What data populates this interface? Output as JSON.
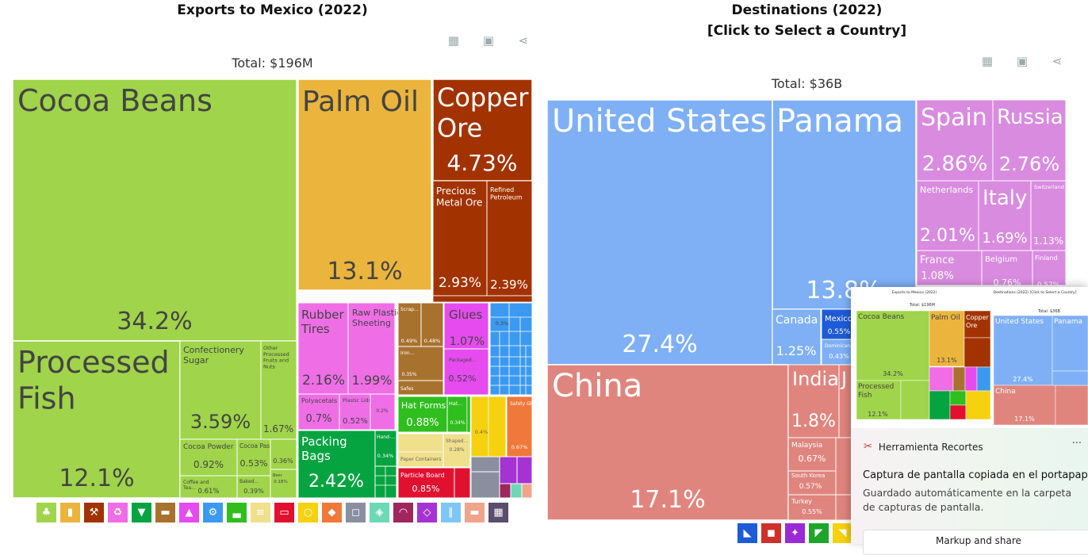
{
  "left": {
    "title": "Exports to Mexico (2022)",
    "total": "Total: $196M",
    "toolbar": [
      "table-icon",
      "image-icon",
      "share-icon"
    ]
  },
  "right": {
    "title_line1": "Destinations (2022)",
    "title_line2": "[Click to Select a Country]",
    "total": "Total: $36B",
    "toolbar": [
      "table-icon",
      "image-icon",
      "share-icon"
    ]
  },
  "chart_data": [
    {
      "type": "treemap",
      "title": "Exports to Mexico (2022)",
      "subtitle": "Total: $196M",
      "items": [
        {
          "name": "Cocoa Beans",
          "value": "34.2%",
          "color": "#a0d44a"
        },
        {
          "name": "Processed Fish",
          "value": "12.1%",
          "color": "#a0d44a"
        },
        {
          "name": "Confectionery Sugar",
          "value": "3.59%",
          "color": "#a0d44a"
        },
        {
          "name": "Other Processed Fruits and Nuts",
          "value": "1.67%",
          "color": "#a0d44a"
        },
        {
          "name": "Cocoa Powder",
          "value": "0.92%",
          "color": "#a0d44a"
        },
        {
          "name": "Cocoa Paste",
          "value": "0.53%",
          "color": "#a0d44a"
        },
        {
          "name": "Coffee and Tea...",
          "value": "0.61%",
          "color": "#a0d44a"
        },
        {
          "name": "Baked...",
          "value": "0.39%",
          "color": "#a0d44a"
        },
        {
          "name": "",
          "value": "0.36%",
          "color": "#a0d44a"
        },
        {
          "name": "Beer",
          "value": "0.18%",
          "color": "#a0d44a"
        },
        {
          "name": "Palm Oil",
          "value": "13.1%",
          "color": "#ebb43c"
        },
        {
          "name": "Copper Ore",
          "value": "4.73%",
          "color": "#a23300"
        },
        {
          "name": "Precious Metal Ore",
          "value": "2.93%",
          "color": "#a23300"
        },
        {
          "name": "Refined Petroleum",
          "value": "2.39%",
          "color": "#a23300"
        },
        {
          "name": "Rubber Tires",
          "value": "2.16%",
          "color": "#ef6ee6"
        },
        {
          "name": "Raw Plastic Sheeting",
          "value": "1.99%",
          "color": "#ef6ee6"
        },
        {
          "name": "Polyacetals",
          "value": "0.7%",
          "color": "#ef6ee6"
        },
        {
          "name": "Plastic Lids",
          "value": "0.52%",
          "color": "#ef6ee6"
        },
        {
          "name": "",
          "value": "0.2%",
          "color": "#ef6ee6"
        },
        {
          "name": "Scrap...",
          "value": "0.49%",
          "color": "#a8722e"
        },
        {
          "name": "",
          "value": "0.48%",
          "color": "#a8722e"
        },
        {
          "name": "Iron...",
          "value": "0.35%",
          "color": "#a8722e"
        },
        {
          "name": "Safes",
          "value": "",
          "color": "#a8722e"
        },
        {
          "name": "Glues",
          "value": "1.07%",
          "color": "#e54bef"
        },
        {
          "name": "Packaged...",
          "value": "0.52%",
          "color": "#e54bef"
        },
        {
          "name": "",
          "value": "0.3%",
          "color": "#3b9aef"
        },
        {
          "name": "Packing Bags",
          "value": "2.42%",
          "color": "#05a441"
        },
        {
          "name": "Hand-...",
          "value": "0.34%",
          "color": "#05a441"
        },
        {
          "name": "Hat Forms",
          "value": "0.88%",
          "color": "#2fbe1e"
        },
        {
          "name": "Hat...",
          "value": "0.34%",
          "color": "#2fbe1e"
        },
        {
          "name": "Paper Containers",
          "value": "",
          "color": "#f0e08c"
        },
        {
          "name": "Shaped...",
          "value": "0.28%",
          "color": "#f0e08c"
        },
        {
          "name": "Particle Board",
          "value": "0.85%",
          "color": "#e2102f"
        },
        {
          "name": "",
          "value": "0.4%",
          "color": "#f5d10f"
        },
        {
          "name": "Safety Glass",
          "value": "0.67%",
          "color": "#f0783a"
        }
      ]
    },
    {
      "type": "treemap",
      "title": "Destinations (2022)",
      "subtitle": "Total: $36B",
      "items": [
        {
          "name": "United States",
          "value": "27.4%",
          "color": "#7fb0f6"
        },
        {
          "name": "Panama",
          "value": "13.8%",
          "color": "#7fb0f6"
        },
        {
          "name": "Canada",
          "value": "1.25%",
          "color": "#7fb0f6"
        },
        {
          "name": "Mexico",
          "value": "0.55%",
          "color": "#1e5bd6"
        },
        {
          "name": "Dominican...",
          "value": "0.43%",
          "color": "#7fb0f6"
        },
        {
          "name": "China",
          "value": "17.1%",
          "color": "#e0857e"
        },
        {
          "name": "India",
          "value": "1.8%",
          "color": "#e0857e"
        },
        {
          "name": "J",
          "value": "",
          "color": "#e0857e"
        },
        {
          "name": "Malaysia",
          "value": "0.67%",
          "color": "#e0857e"
        },
        {
          "name": "South Korea",
          "value": "0.57%",
          "color": "#e0857e"
        },
        {
          "name": "Turkey",
          "value": "0.55%",
          "color": "#e0857e"
        },
        {
          "name": "Spain",
          "value": "2.86%",
          "color": "#d98be0"
        },
        {
          "name": "Russia",
          "value": "2.76%",
          "color": "#d98be0"
        },
        {
          "name": "Netherlands",
          "value": "2.01%",
          "color": "#d98be0"
        },
        {
          "name": "Italy",
          "value": "1.69%",
          "color": "#d98be0"
        },
        {
          "name": "Switzerland",
          "value": "1.13%",
          "color": "#d98be0"
        },
        {
          "name": "France",
          "value": "1.08%",
          "color": "#d98be0"
        },
        {
          "name": "Belgium",
          "value": "0.76%",
          "color": "#d98be0"
        },
        {
          "name": "Finland",
          "value": "0.57%",
          "color": "#d98be0"
        }
      ]
    }
  ],
  "legend_left": [
    {
      "icon": "wheat-icon",
      "color": "#a0d44a",
      "glyph": "♣"
    },
    {
      "icon": "bottle-icon",
      "color": "#ebb43c",
      "glyph": "▮"
    },
    {
      "icon": "pickaxe-icon",
      "color": "#a23300",
      "glyph": "⚒"
    },
    {
      "icon": "recycle-icon",
      "color": "#ef6ee6",
      "glyph": "♻"
    },
    {
      "icon": "shirt-icon",
      "color": "#05a441",
      "glyph": "▼"
    },
    {
      "icon": "anvil-icon",
      "color": "#a8722e",
      "glyph": "▬"
    },
    {
      "icon": "flask-icon",
      "color": "#e54bef",
      "glyph": "▲"
    },
    {
      "icon": "gear-icon",
      "color": "#3b9aef",
      "glyph": "⚙"
    },
    {
      "icon": "shoe-icon",
      "color": "#2fbe1e",
      "glyph": "▃"
    },
    {
      "icon": "paper-icon",
      "color": "#f0e08c",
      "glyph": "≡"
    },
    {
      "icon": "card-icon",
      "color": "#e2102f",
      "glyph": "▭"
    },
    {
      "icon": "medal-icon",
      "color": "#f5d10f",
      "glyph": "○"
    },
    {
      "icon": "mineral-icon",
      "color": "#f0783a",
      "glyph": "◆"
    },
    {
      "icon": "box-icon",
      "color": "#8a8fa0",
      "glyph": "◻"
    },
    {
      "icon": "leather-icon",
      "color": "#6cd9b4",
      "glyph": "◈"
    },
    {
      "icon": "gauge-icon",
      "color": "#a0265e",
      "glyph": "◠"
    },
    {
      "icon": "gem-icon",
      "color": "#a533d3",
      "glyph": "◇"
    },
    {
      "icon": "road-icon",
      "color": "#7fc6f5",
      "glyph": "∥"
    },
    {
      "icon": "sofa-icon",
      "color": "#f0a48c",
      "glyph": "▬"
    },
    {
      "icon": "easel-icon",
      "color": "#5a4d6d",
      "glyph": "▦"
    }
  ],
  "legend_right": [
    {
      "icon": "north-america-icon",
      "color": "#1e5bd6",
      "glyph": "◣"
    },
    {
      "icon": "asia-icon",
      "color": "#d0302c",
      "glyph": "◼"
    },
    {
      "icon": "europe-icon",
      "color": "#9a2ad6",
      "glyph": "✦"
    },
    {
      "icon": "south-america-icon",
      "color": "#1ea52a",
      "glyph": "◤"
    },
    {
      "icon": "africa-icon",
      "color": "#f5d10f",
      "glyph": "◥"
    }
  ],
  "overlay": {
    "thumb_left_title": "Exports to Mexico (2022)",
    "thumb_right_title": "Destinations (2022)\n[Click to Select a Country]",
    "thumb_left_total": "Total: $196M",
    "thumb_right_total": "Total: $36B",
    "app_name": "Herramienta Recortes",
    "message": "Captura de pantalla copiada en el portapapeles",
    "detail": "Guardado automáticamente en la carpeta de capturas de pantalla.",
    "button": "Markup and share",
    "more": "···"
  }
}
